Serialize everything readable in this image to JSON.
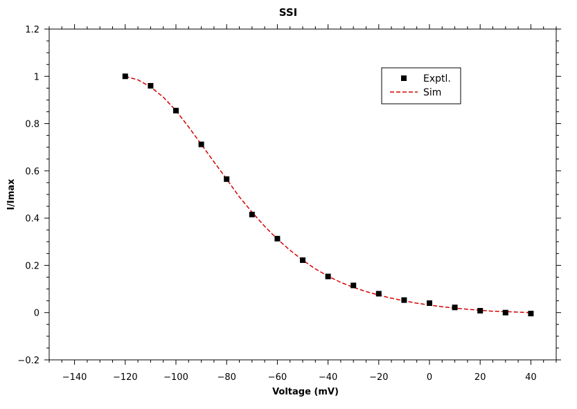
{
  "chart_data": {
    "type": "scatter",
    "title": "SSI",
    "xlabel": "Voltage (mV)",
    "ylabel": "I/Imax",
    "xlim": [
      -150,
      50
    ],
    "ylim": [
      -0.2,
      1.2
    ],
    "x_ticks": [
      -140,
      -120,
      -100,
      -80,
      -60,
      -40,
      -20,
      0,
      20,
      40
    ],
    "x_tick_labels": [
      "−140",
      "−120",
      "−100",
      "−80",
      "−60",
      "−40",
      "−20",
      "0",
      "20",
      "40"
    ],
    "y_ticks": [
      -0.2,
      0,
      0.2,
      0.4,
      0.6,
      0.8,
      1,
      1.2
    ],
    "y_tick_labels": [
      "−0.2",
      "0",
      "0.2",
      "0.4",
      "0.6",
      "0.8",
      "1",
      "1.2"
    ],
    "grid": false,
    "legend_position": "top-right",
    "series": [
      {
        "name": "Exptl.",
        "kind": "markers",
        "marker": "square",
        "color": "#000000",
        "x": [
          -120,
          -110,
          -100,
          -90,
          -80,
          -70,
          -60,
          -50,
          -40,
          -30,
          -20,
          -10,
          0,
          10,
          20,
          30,
          40
        ],
        "y": [
          1.0,
          0.96,
          0.855,
          0.712,
          0.565,
          0.415,
          0.313,
          0.222,
          0.153,
          0.115,
          0.08,
          0.053,
          0.04,
          0.022,
          0.008,
          0.0,
          -0.004
        ]
      },
      {
        "name": "Sim",
        "kind": "line",
        "dash": "dashed",
        "color": "#d40000",
        "x": [
          -120,
          -115,
          -110,
          -105,
          -100,
          -95,
          -90,
          -85,
          -80,
          -75,
          -70,
          -65,
          -60,
          -55,
          -50,
          -45,
          -40,
          -35,
          -30,
          -25,
          -20,
          -15,
          -10,
          -5,
          0,
          5,
          10,
          15,
          20,
          25,
          30,
          35,
          40
        ],
        "y": [
          1.0,
          0.985,
          0.955,
          0.912,
          0.855,
          0.786,
          0.712,
          0.638,
          0.565,
          0.49,
          0.425,
          0.365,
          0.311,
          0.264,
          0.222,
          0.185,
          0.154,
          0.128,
          0.107,
          0.089,
          0.074,
          0.061,
          0.05,
          0.04,
          0.032,
          0.025,
          0.019,
          0.014,
          0.01,
          0.006,
          0.004,
          0.002,
          0.0
        ]
      }
    ]
  }
}
